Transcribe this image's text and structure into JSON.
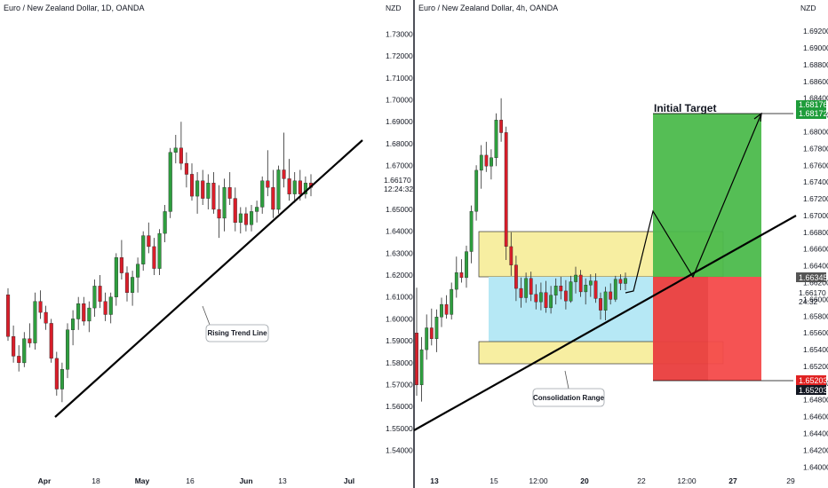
{
  "colors": {
    "up": "#2e9e3e",
    "down": "#d91e2a",
    "wick": "#2a2a2a",
    "line": "#000000",
    "yellow": "#f7eea1",
    "cyan": "#b6e8f5",
    "target": "#4cbb4c",
    "stop": "#f44a4a"
  },
  "left": {
    "title": "Euro / New Zealand Dollar, 1D, OANDA",
    "currency": "NZD",
    "price_label": "1.66170",
    "countdown_label": "12:24:32",
    "annotation": "Rising Trend Line",
    "x_labels": [
      "Apr",
      "18",
      "May",
      "16",
      "Jun",
      "13",
      "Jul"
    ]
  },
  "right": {
    "title": "Euro / New Zealand Dollar, 4h, OANDA",
    "currency": "NZD",
    "target_label": "Initial Target",
    "consolidation_label": "Consolidation Range",
    "target_price_top": "1.68176",
    "target_price_bottom": "1.68172",
    "entry_price": "1.66345",
    "current_price": "1.66170",
    "countdown": "24:32",
    "stop_price_top": "1.65203",
    "stop_price_bottom": "1.65203",
    "x_labels": [
      "13",
      "15",
      "12:00",
      "20",
      "22",
      "12:00",
      "27",
      "29"
    ]
  },
  "chart_data": [
    {
      "type": "candlestick",
      "title": "Euro / New Zealand Dollar, 1D, OANDA",
      "ylabel": "NZD",
      "ylim": [
        1.535,
        1.735
      ],
      "y_ticks": [
        "1.54000",
        "1.55000",
        "1.56000",
        "1.57000",
        "1.58000",
        "1.59000",
        "1.60000",
        "1.61000",
        "1.62000",
        "1.63000",
        "1.64000",
        "1.65000",
        "1.66000",
        "1.67000",
        "1.68000",
        "1.69000",
        "1.70000",
        "1.71000",
        "1.72000",
        "1.73000"
      ],
      "x_labels": [
        "Apr",
        "18",
        "May",
        "16",
        "Jun",
        "13",
        "Jul"
      ],
      "candles": [
        [
          1.611,
          1.614,
          1.59,
          1.592
        ],
        [
          1.592,
          1.597,
          1.58,
          1.583
        ],
        [
          1.583,
          1.588,
          1.576,
          1.58
        ],
        [
          1.58,
          1.594,
          1.578,
          1.591
        ],
        [
          1.591,
          1.598,
          1.587,
          1.589
        ],
        [
          1.589,
          1.612,
          1.586,
          1.608
        ],
        [
          1.608,
          1.613,
          1.6,
          1.603
        ],
        [
          1.603,
          1.606,
          1.595,
          1.598
        ],
        [
          1.598,
          1.6,
          1.58,
          1.582
        ],
        [
          1.582,
          1.585,
          1.565,
          1.568
        ],
        [
          1.568,
          1.58,
          1.562,
          1.577
        ],
        [
          1.577,
          1.598,
          1.573,
          1.595
        ],
        [
          1.595,
          1.604,
          1.588,
          1.6
        ],
        [
          1.6,
          1.61,
          1.595,
          1.607
        ],
        [
          1.607,
          1.61,
          1.597,
          1.599
        ],
        [
          1.599,
          1.608,
          1.594,
          1.605
        ],
        [
          1.605,
          1.618,
          1.601,
          1.615
        ],
        [
          1.615,
          1.62,
          1.605,
          1.608
        ],
        [
          1.608,
          1.612,
          1.599,
          1.602
        ],
        [
          1.602,
          1.612,
          1.598,
          1.61
        ],
        [
          1.61,
          1.63,
          1.606,
          1.628
        ],
        [
          1.628,
          1.636,
          1.618,
          1.621
        ],
        [
          1.621,
          1.624,
          1.608,
          1.612
        ],
        [
          1.612,
          1.622,
          1.606,
          1.619
        ],
        [
          1.619,
          1.628,
          1.612,
          1.625
        ],
        [
          1.625,
          1.64,
          1.622,
          1.638
        ],
        [
          1.638,
          1.644,
          1.63,
          1.633
        ],
        [
          1.633,
          1.637,
          1.62,
          1.623
        ],
        [
          1.623,
          1.641,
          1.62,
          1.639
        ],
        [
          1.639,
          1.652,
          1.635,
          1.649
        ],
        [
          1.649,
          1.678,
          1.646,
          1.676
        ],
        [
          1.676,
          1.684,
          1.671,
          1.678
        ],
        [
          1.678,
          1.69,
          1.668,
          1.671
        ],
        [
          1.671,
          1.676,
          1.66,
          1.666
        ],
        [
          1.666,
          1.671,
          1.654,
          1.656
        ],
        [
          1.656,
          1.667,
          1.648,
          1.663
        ],
        [
          1.663,
          1.668,
          1.652,
          1.655
        ],
        [
          1.655,
          1.666,
          1.65,
          1.662
        ],
        [
          1.662,
          1.667,
          1.648,
          1.65
        ],
        [
          1.65,
          1.661,
          1.637,
          1.646
        ],
        [
          1.646,
          1.664,
          1.64,
          1.66
        ],
        [
          1.66,
          1.667,
          1.652,
          1.655
        ],
        [
          1.655,
          1.66,
          1.64,
          1.644
        ],
        [
          1.644,
          1.651,
          1.639,
          1.648
        ],
        [
          1.648,
          1.651,
          1.64,
          1.643
        ],
        [
          1.643,
          1.652,
          1.64,
          1.649
        ],
        [
          1.649,
          1.654,
          1.644,
          1.651
        ],
        [
          1.651,
          1.665,
          1.648,
          1.663
        ],
        [
          1.663,
          1.677,
          1.656,
          1.66
        ],
        [
          1.66,
          1.668,
          1.646,
          1.65
        ],
        [
          1.65,
          1.67,
          1.648,
          1.668
        ],
        [
          1.668,
          1.685,
          1.66,
          1.664
        ],
        [
          1.664,
          1.673,
          1.654,
          1.657
        ],
        [
          1.657,
          1.667,
          1.653,
          1.663
        ],
        [
          1.663,
          1.668,
          1.654,
          1.657
        ],
        [
          1.657,
          1.665,
          1.655,
          1.662
        ],
        [
          1.662,
          1.666,
          1.656,
          1.66
        ]
      ],
      "annotations": [
        "Rising Trend Line"
      ],
      "last_price": "1.66170"
    },
    {
      "type": "candlestick",
      "title": "Euro / New Zealand Dollar, 4h, OANDA",
      "ylabel": "NZD",
      "ylim": [
        1.6395,
        1.6935
      ],
      "y_ticks": [
        "1.64000",
        "1.64200",
        "1.64400",
        "1.64600",
        "1.64800",
        "1.65000",
        "1.65200",
        "1.65400",
        "1.65600",
        "1.65800",
        "1.66000",
        "1.66200",
        "1.66400",
        "1.66600",
        "1.66800",
        "1.67000",
        "1.67200",
        "1.67400",
        "1.67600",
        "1.67800",
        "1.68000",
        "1.68200",
        "1.68400",
        "1.68600",
        "1.68800",
        "1.69000",
        "1.69200"
      ],
      "x_labels": [
        "13",
        "15",
        "12:00",
        "20",
        "22",
        "12:00",
        "27",
        "29"
      ],
      "candles": [
        [
          1.656,
          1.6614,
          1.6485,
          1.6498
        ],
        [
          1.6498,
          1.6555,
          1.6478,
          1.654
        ],
        [
          1.654,
          1.6582,
          1.6528,
          1.6566
        ],
        [
          1.6566,
          1.6589,
          1.6545,
          1.6553
        ],
        [
          1.6553,
          1.6588,
          1.6537,
          1.6579
        ],
        [
          1.6579,
          1.6602,
          1.6567,
          1.6594
        ],
        [
          1.6594,
          1.6605,
          1.6577,
          1.6582
        ],
        [
          1.6582,
          1.662,
          1.6576,
          1.6612
        ],
        [
          1.6612,
          1.6651,
          1.6602,
          1.6632
        ],
        [
          1.6632,
          1.6648,
          1.662,
          1.6626
        ],
        [
          1.6626,
          1.6664,
          1.6614,
          1.6657
        ],
        [
          1.6657,
          1.6712,
          1.6643,
          1.6705
        ],
        [
          1.6705,
          1.676,
          1.6694,
          1.6754
        ],
        [
          1.6754,
          1.6784,
          1.6732,
          1.6772
        ],
        [
          1.6772,
          1.6788,
          1.6752,
          1.6759
        ],
        [
          1.6759,
          1.6779,
          1.6743,
          1.6769
        ],
        [
          1.6769,
          1.6822,
          1.6759,
          1.6814
        ],
        [
          1.6814,
          1.684,
          1.6788,
          1.6799
        ],
        [
          1.6799,
          1.6806,
          1.6647,
          1.6663
        ],
        [
          1.6663,
          1.668,
          1.6628,
          1.6641
        ],
        [
          1.6641,
          1.6652,
          1.6598,
          1.6613
        ],
        [
          1.6613,
          1.6626,
          1.659,
          1.6602
        ],
        [
          1.6602,
          1.6632,
          1.6596,
          1.6625
        ],
        [
          1.6625,
          1.6633,
          1.6598,
          1.6606
        ],
        [
          1.6606,
          1.6618,
          1.6588,
          1.6597
        ],
        [
          1.6597,
          1.662,
          1.6587,
          1.6608
        ],
        [
          1.6608,
          1.6622,
          1.6584,
          1.659
        ],
        [
          1.659,
          1.6616,
          1.6583,
          1.6605
        ],
        [
          1.6605,
          1.6625,
          1.6594,
          1.6616
        ],
        [
          1.6616,
          1.6627,
          1.66,
          1.661
        ],
        [
          1.661,
          1.6623,
          1.6588,
          1.6598
        ],
        [
          1.6598,
          1.6628,
          1.6596,
          1.6621
        ],
        [
          1.6621,
          1.6639,
          1.6607,
          1.6629
        ],
        [
          1.6629,
          1.6635,
          1.6603,
          1.6609
        ],
        [
          1.6609,
          1.6625,
          1.6594,
          1.6617
        ],
        [
          1.6617,
          1.663,
          1.6603,
          1.6622
        ],
        [
          1.6622,
          1.6631,
          1.6596,
          1.6601
        ],
        [
          1.6601,
          1.6608,
          1.6576,
          1.6587
        ],
        [
          1.6587,
          1.6615,
          1.6575,
          1.6609
        ],
        [
          1.6609,
          1.6619,
          1.6594,
          1.66
        ],
        [
          1.66,
          1.6628,
          1.6597,
          1.6624
        ],
        [
          1.6624,
          1.663,
          1.6611,
          1.6619
        ],
        [
          1.6619,
          1.6632,
          1.6611,
          1.6625
        ]
      ],
      "zones": [
        "Consolidation Range",
        "Initial Target"
      ],
      "levels": [
        "1.68176",
        "1.68172",
        "1.66345",
        "1.66170",
        "1.65203",
        "1.65203"
      ],
      "last_price": "1.66170"
    }
  ]
}
